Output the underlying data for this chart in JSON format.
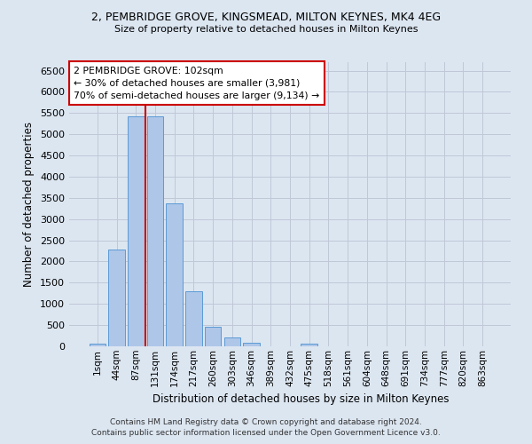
{
  "title_line1": "2, PEMBRIDGE GROVE, KINGSMEAD, MILTON KEYNES, MK4 4EG",
  "title_line2": "Size of property relative to detached houses in Milton Keynes",
  "xlabel": "Distribution of detached houses by size in Milton Keynes",
  "ylabel": "Number of detached properties",
  "footer_line1": "Contains HM Land Registry data © Crown copyright and database right 2024.",
  "footer_line2": "Contains public sector information licensed under the Open Government Licence v3.0.",
  "bar_labels": [
    "1sqm",
    "44sqm",
    "87sqm",
    "131sqm",
    "174sqm",
    "217sqm",
    "260sqm",
    "303sqm",
    "346sqm",
    "389sqm",
    "432sqm",
    "475sqm",
    "518sqm",
    "561sqm",
    "604sqm",
    "648sqm",
    "691sqm",
    "734sqm",
    "777sqm",
    "820sqm",
    "863sqm"
  ],
  "bar_values": [
    70,
    2280,
    5430,
    5430,
    3380,
    1300,
    470,
    210,
    90,
    0,
    0,
    70,
    0,
    0,
    0,
    0,
    0,
    0,
    0,
    0,
    0
  ],
  "bar_color": "#aec6e8",
  "bar_edgecolor": "#5b9bd5",
  "grid_color": "#c0c8d8",
  "background_color": "#dce6f1",
  "vline_x": 2.5,
  "vline_color": "#cc0000",
  "annotation_text": "2 PEMBRIDGE GROVE: 102sqm\n← 30% of detached houses are smaller (3,981)\n70% of semi-detached houses are larger (9,134) →",
  "annotation_box_color": "white",
  "annotation_box_edgecolor": "#cc0000",
  "ylim": [
    0,
    6700
  ],
  "yticks": [
    0,
    500,
    1000,
    1500,
    2000,
    2500,
    3000,
    3500,
    4000,
    4500,
    5000,
    5500,
    6000,
    6500
  ]
}
